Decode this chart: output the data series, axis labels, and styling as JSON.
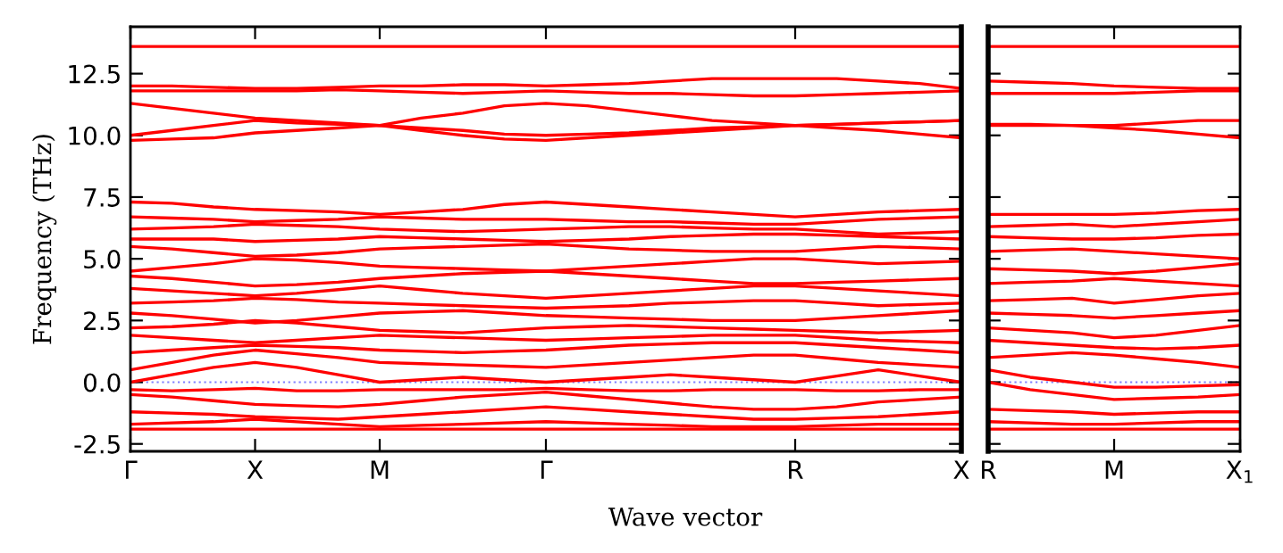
{
  "chart_data": [
    {
      "type": "line",
      "ylabel": "Frequency (THz)",
      "xlabel": "Wave vector",
      "categories": [
        "Γ",
        null,
        null,
        "X",
        null,
        null,
        "M",
        null,
        null,
        null,
        "Γ",
        null,
        null,
        null,
        null,
        null,
        "R",
        null,
        null,
        null,
        "X"
      ],
      "ylim": [
        -2.8,
        14.4
      ],
      "yticks": [
        -2.5,
        {
          "value": 0,
          "label": "0.0"
        },
        2.5,
        {
          "value": 5,
          "label": "5.0"
        },
        7.5,
        {
          "value": 10,
          "label": "10.0"
        },
        12.5
      ],
      "ref_lines": [
        {
          "axis": "y",
          "value": 0,
          "color": "#8080ff",
          "line_style": "dotted"
        }
      ],
      "line_style": "solid",
      "marker": "none",
      "grid": false,
      "series": [
        {
          "color": "#ff0000",
          "values": [
            13.6,
            13.6,
            13.6,
            13.6,
            13.6,
            13.6,
            13.6,
            13.6,
            13.6,
            13.6,
            13.6,
            13.6,
            13.6,
            13.6,
            13.6,
            13.6,
            13.6,
            13.6,
            13.6,
            13.6,
            13.6
          ]
        },
        {
          "color": "#ff0000",
          "values": [
            12.0,
            12.0,
            11.95,
            11.9,
            11.9,
            11.95,
            12.0,
            12.0,
            12.05,
            12.05,
            12.0,
            12.05,
            12.1,
            12.2,
            12.3,
            12.3,
            12.3,
            12.3,
            12.2,
            12.1,
            11.9
          ]
        },
        {
          "color": "#ff0000",
          "values": [
            11.8,
            11.8,
            11.8,
            11.8,
            11.8,
            11.85,
            11.8,
            11.75,
            11.7,
            11.75,
            11.8,
            11.75,
            11.7,
            11.7,
            11.65,
            11.6,
            11.6,
            11.65,
            11.7,
            11.75,
            11.8
          ]
        },
        {
          "color": "#ff0000",
          "values": [
            11.3,
            11.1,
            10.9,
            10.7,
            10.6,
            10.5,
            10.4,
            10.7,
            10.9,
            11.2,
            11.3,
            11.2,
            11.0,
            10.8,
            10.6,
            10.5,
            10.4,
            10.45,
            10.5,
            10.55,
            10.6
          ]
        },
        {
          "color": "#ff0000",
          "values": [
            10.0,
            10.2,
            10.4,
            10.6,
            10.5,
            10.45,
            10.4,
            10.2,
            10.0,
            9.85,
            9.8,
            9.9,
            10.0,
            10.1,
            10.2,
            10.3,
            10.4,
            10.3,
            10.2,
            10.05,
            9.9
          ]
        },
        {
          "color": "#ff0000",
          "values": [
            9.8,
            9.85,
            9.9,
            10.1,
            10.2,
            10.3,
            10.4,
            10.3,
            10.2,
            10.05,
            10.0,
            10.05,
            10.1,
            10.2,
            10.3,
            10.35,
            10.4,
            10.45,
            10.5,
            10.55,
            10.6
          ]
        },
        {
          "color": "#ff0000",
          "values": [
            7.3,
            7.25,
            7.1,
            7.0,
            6.95,
            6.9,
            6.8,
            6.9,
            7.0,
            7.2,
            7.3,
            7.2,
            7.1,
            7.0,
            6.9,
            6.8,
            6.7,
            6.8,
            6.9,
            6.95,
            7.0
          ]
        },
        {
          "color": "#ff0000",
          "values": [
            6.7,
            6.65,
            6.6,
            6.5,
            6.55,
            6.6,
            6.7,
            6.65,
            6.6,
            6.6,
            6.6,
            6.55,
            6.5,
            6.5,
            6.45,
            6.4,
            6.4,
            6.5,
            6.6,
            6.65,
            6.7
          ]
        },
        {
          "color": "#ff0000",
          "values": [
            6.2,
            6.25,
            6.3,
            6.4,
            6.35,
            6.3,
            6.2,
            6.15,
            6.1,
            6.15,
            6.2,
            6.25,
            6.3,
            6.3,
            6.25,
            6.2,
            6.2,
            6.1,
            6.0,
            6.05,
            6.1
          ]
        },
        {
          "color": "#ff0000",
          "values": [
            5.8,
            5.8,
            5.8,
            5.7,
            5.75,
            5.8,
            5.9,
            5.85,
            5.8,
            5.75,
            5.7,
            5.75,
            5.8,
            5.9,
            5.95,
            6.0,
            6.0,
            5.95,
            5.9,
            5.85,
            5.8
          ]
        },
        {
          "color": "#ff0000",
          "values": [
            5.5,
            5.4,
            5.25,
            5.1,
            5.15,
            5.25,
            5.4,
            5.45,
            5.5,
            5.55,
            5.6,
            5.5,
            5.4,
            5.35,
            5.3,
            5.3,
            5.3,
            5.4,
            5.5,
            5.45,
            5.4
          ]
        },
        {
          "color": "#ff0000",
          "values": [
            4.5,
            4.65,
            4.8,
            5.0,
            4.95,
            4.85,
            4.7,
            4.65,
            4.6,
            4.55,
            4.5,
            4.6,
            4.7,
            4.8,
            4.9,
            5.0,
            5.0,
            4.9,
            4.8,
            4.85,
            4.9
          ]
        },
        {
          "color": "#ff0000",
          "values": [
            4.3,
            4.2,
            4.05,
            3.9,
            3.95,
            4.05,
            4.2,
            4.3,
            4.4,
            4.45,
            4.5,
            4.4,
            4.3,
            4.2,
            4.1,
            4.0,
            4.0,
            4.05,
            4.1,
            4.15,
            4.2
          ]
        },
        {
          "color": "#ff0000",
          "values": [
            3.8,
            3.7,
            3.6,
            3.5,
            3.6,
            3.75,
            3.9,
            3.75,
            3.6,
            3.5,
            3.4,
            3.5,
            3.6,
            3.7,
            3.8,
            3.9,
            3.9,
            3.8,
            3.7,
            3.6,
            3.5
          ]
        },
        {
          "color": "#ff0000",
          "values": [
            3.2,
            3.25,
            3.3,
            3.4,
            3.35,
            3.25,
            3.2,
            3.15,
            3.1,
            3.05,
            3.0,
            3.05,
            3.1,
            3.2,
            3.25,
            3.3,
            3.3,
            3.2,
            3.1,
            3.15,
            3.2
          ]
        },
        {
          "color": "#ff0000",
          "values": [
            2.8,
            2.7,
            2.55,
            2.4,
            2.5,
            2.65,
            2.8,
            2.85,
            2.9,
            2.8,
            2.7,
            2.65,
            2.6,
            2.55,
            2.5,
            2.5,
            2.5,
            2.6,
            2.7,
            2.8,
            2.9
          ]
        },
        {
          "color": "#ff0000",
          "values": [
            2.2,
            2.25,
            2.35,
            2.5,
            2.4,
            2.25,
            2.1,
            2.05,
            2.0,
            2.1,
            2.2,
            2.25,
            2.3,
            2.25,
            2.2,
            2.15,
            2.1,
            2.05,
            2.0,
            2.05,
            2.1
          ]
        },
        {
          "color": "#ff0000",
          "values": [
            1.9,
            1.8,
            1.7,
            1.6,
            1.7,
            1.8,
            1.9,
            1.85,
            1.8,
            1.75,
            1.7,
            1.75,
            1.8,
            1.85,
            1.9,
            1.9,
            1.9,
            1.8,
            1.7,
            1.65,
            1.6
          ]
        },
        {
          "color": "#ff0000",
          "values": [
            1.2,
            1.3,
            1.4,
            1.5,
            1.45,
            1.4,
            1.3,
            1.25,
            1.2,
            1.25,
            1.3,
            1.4,
            1.5,
            1.55,
            1.6,
            1.6,
            1.6,
            1.5,
            1.4,
            1.3,
            1.2
          ]
        },
        {
          "color": "#ff0000",
          "values": [
            0.5,
            0.8,
            1.1,
            1.3,
            1.15,
            1.0,
            0.8,
            0.75,
            0.7,
            0.65,
            0.6,
            0.7,
            0.8,
            0.9,
            1.0,
            1.1,
            1.1,
            0.95,
            0.8,
            0.7,
            0.6
          ]
        },
        {
          "color": "#ff0000",
          "values": [
            0.0,
            0.3,
            0.6,
            0.8,
            0.6,
            0.3,
            0.0,
            0.1,
            0.2,
            0.1,
            0.0,
            0.1,
            0.2,
            0.3,
            0.2,
            0.1,
            0.0,
            0.25,
            0.5,
            0.25,
            0.0
          ]
        },
        {
          "color": "#ff0000",
          "values": [
            -0.3,
            -0.35,
            -0.3,
            -0.25,
            -0.35,
            -0.35,
            -0.3,
            -0.3,
            -0.3,
            -0.3,
            -0.25,
            -0.3,
            -0.35,
            -0.35,
            -0.3,
            -0.3,
            -0.3,
            -0.35,
            -0.35,
            -0.3,
            -0.3
          ]
        },
        {
          "color": "#ff0000",
          "values": [
            -0.5,
            -0.6,
            -0.75,
            -0.9,
            -0.95,
            -1.0,
            -0.9,
            -0.75,
            -0.6,
            -0.5,
            -0.4,
            -0.55,
            -0.7,
            -0.85,
            -1.0,
            -1.1,
            -1.1,
            -1.0,
            -0.8,
            -0.7,
            -0.6
          ]
        },
        {
          "color": "#ff0000",
          "values": [
            -1.2,
            -1.25,
            -1.3,
            -1.4,
            -1.45,
            -1.5,
            -1.4,
            -1.3,
            -1.2,
            -1.1,
            -1.0,
            -1.1,
            -1.2,
            -1.3,
            -1.4,
            -1.5,
            -1.5,
            -1.45,
            -1.4,
            -1.3,
            -1.2
          ]
        },
        {
          "color": "#ff0000",
          "values": [
            -1.7,
            -1.65,
            -1.6,
            -1.5,
            -1.6,
            -1.7,
            -1.8,
            -1.75,
            -1.7,
            -1.65,
            -1.6,
            -1.65,
            -1.7,
            -1.75,
            -1.8,
            -1.8,
            -1.8,
            -1.75,
            -1.7,
            -1.7,
            -1.7
          ]
        },
        {
          "color": "#ff0000",
          "values": [
            -1.9,
            -1.9,
            -1.9,
            -1.9,
            -1.9,
            -1.9,
            -1.9,
            -1.9,
            -1.9,
            -1.9,
            -1.9,
            -1.9,
            -1.9,
            -1.9,
            -1.9,
            -1.9,
            -1.9,
            -1.9,
            -1.9,
            -1.9,
            -1.9
          ]
        }
      ]
    },
    {
      "type": "line",
      "categories": [
        "R",
        null,
        null,
        "M",
        null,
        null,
        "X$_{1}$"
      ],
      "ylim": [
        -2.8,
        14.4
      ],
      "yticks": [
        -2.5,
        0,
        2.5,
        5,
        7.5,
        10,
        12.5
      ],
      "tick_labels": "x",
      "ref_lines": [
        {
          "axis": "y",
          "value": 0,
          "color": "#8080ff",
          "line_style": "dotted"
        }
      ],
      "line_style": "solid",
      "marker": "none",
      "grid": false,
      "series": [
        {
          "color": "#ff0000",
          "values": [
            13.6,
            13.6,
            13.6,
            13.6,
            13.6,
            13.6,
            13.6
          ]
        },
        {
          "color": "#ff0000",
          "values": [
            12.2,
            12.15,
            12.1,
            12.0,
            11.95,
            11.9,
            11.9
          ]
        },
        {
          "color": "#ff0000",
          "values": [
            11.7,
            11.7,
            11.7,
            11.7,
            11.75,
            11.8,
            11.8
          ]
        },
        {
          "color": "#ff0000",
          "values": [
            10.4,
            10.4,
            10.4,
            10.4,
            10.5,
            10.6,
            10.6
          ]
        },
        {
          "color": "#ff0000",
          "values": [
            10.45,
            10.45,
            10.4,
            10.3,
            10.2,
            10.05,
            9.9
          ]
        },
        {
          "color": "#ff0000",
          "values": [
            6.8,
            6.8,
            6.8,
            6.8,
            6.85,
            6.95,
            7.0
          ]
        },
        {
          "color": "#ff0000",
          "values": [
            6.3,
            6.35,
            6.4,
            6.3,
            6.4,
            6.5,
            6.6
          ]
        },
        {
          "color": "#ff0000",
          "values": [
            5.9,
            5.85,
            5.8,
            5.8,
            5.85,
            5.95,
            6.0
          ]
        },
        {
          "color": "#ff0000",
          "values": [
            5.3,
            5.35,
            5.4,
            5.3,
            5.2,
            5.1,
            5.0
          ]
        },
        {
          "color": "#ff0000",
          "values": [
            4.6,
            4.55,
            4.5,
            4.4,
            4.5,
            4.65,
            4.8
          ]
        },
        {
          "color": "#ff0000",
          "values": [
            4.0,
            4.05,
            4.1,
            4.2,
            4.1,
            4.0,
            3.9
          ]
        },
        {
          "color": "#ff0000",
          "values": [
            3.3,
            3.35,
            3.4,
            3.2,
            3.35,
            3.5,
            3.6
          ]
        },
        {
          "color": "#ff0000",
          "values": [
            2.8,
            2.75,
            2.7,
            2.6,
            2.7,
            2.8,
            2.9
          ]
        },
        {
          "color": "#ff0000",
          "values": [
            2.2,
            2.1,
            2.0,
            1.8,
            1.9,
            2.1,
            2.3
          ]
        },
        {
          "color": "#ff0000",
          "values": [
            1.7,
            1.6,
            1.5,
            1.4,
            1.35,
            1.4,
            1.5
          ]
        },
        {
          "color": "#ff0000",
          "values": [
            1.0,
            1.1,
            1.2,
            1.1,
            0.95,
            0.8,
            0.6
          ]
        },
        {
          "color": "#ff0000",
          "values": [
            0.5,
            0.2,
            0.0,
            -0.2,
            -0.2,
            -0.15,
            -0.1
          ]
        },
        {
          "color": "#ff0000",
          "values": [
            0.0,
            -0.3,
            -0.5,
            -0.7,
            -0.65,
            -0.6,
            -0.5
          ]
        },
        {
          "color": "#ff0000",
          "values": [
            -1.1,
            -1.15,
            -1.2,
            -1.3,
            -1.25,
            -1.2,
            -1.2
          ]
        },
        {
          "color": "#ff0000",
          "values": [
            -1.6,
            -1.65,
            -1.7,
            -1.7,
            -1.65,
            -1.6,
            -1.6
          ]
        },
        {
          "color": "#ff0000",
          "values": [
            -1.9,
            -1.9,
            -1.9,
            -1.9,
            -1.9,
            -1.9,
            -1.9
          ]
        }
      ]
    }
  ]
}
